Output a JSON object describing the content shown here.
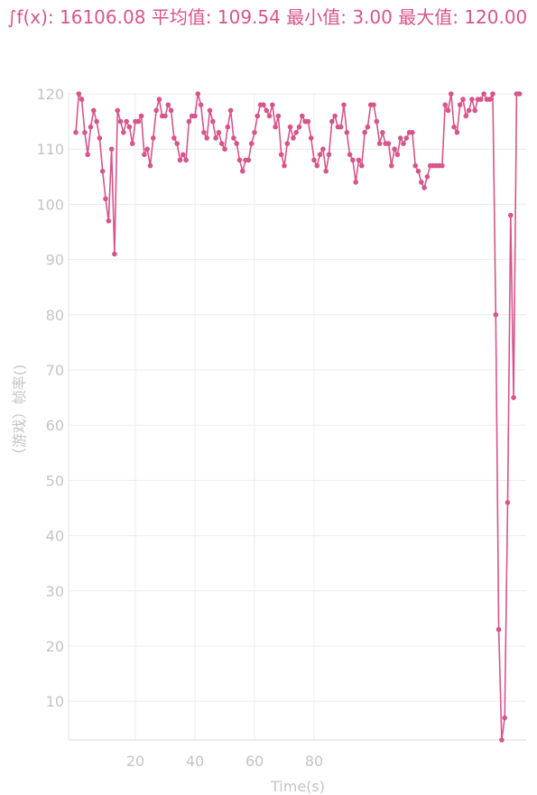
{
  "summary": {
    "text": "∫f(x): 16106.08 平均值: 109.54 最小值: 3.00 最大值: 120.00"
  },
  "colors": {
    "series": "#d6558b",
    "grid": "#ececec",
    "tick_text": "#c4c4c4"
  },
  "chart_data": {
    "type": "line",
    "title": "",
    "xlabel": "Time(s)",
    "ylabel": "（游戏）帧率()",
    "ylim": [
      3,
      120
    ],
    "xlim": [
      0,
      149
    ],
    "y_ticks": [
      10,
      20,
      30,
      40,
      50,
      60,
      70,
      80,
      90,
      100,
      110,
      120
    ],
    "x_ticks": [
      20,
      40,
      60,
      80
    ],
    "grid": true,
    "series": [
      {
        "values": [
          113,
          120,
          119,
          113,
          109,
          114,
          117,
          115,
          112,
          106,
          101,
          97,
          110,
          91,
          117,
          115,
          113,
          115,
          114,
          111,
          115,
          115,
          116,
          109,
          110,
          107,
          112,
          117,
          119,
          116,
          116,
          118,
          117,
          112,
          111,
          108,
          109,
          108,
          115,
          116,
          116,
          120,
          118,
          113,
          112,
          117,
          115,
          112,
          113,
          111,
          110,
          114,
          117,
          112,
          111,
          108,
          106,
          108,
          108,
          111,
          113,
          116,
          118,
          118,
          117,
          116,
          118,
          114,
          116,
          109,
          107,
          111,
          114,
          112,
          113,
          114,
          116,
          115,
          115,
          112,
          108,
          107,
          109,
          110,
          106,
          109,
          115,
          116,
          114,
          114,
          118,
          113,
          109,
          108,
          104,
          108,
          107,
          113,
          114,
          118,
          118,
          115,
          111,
          113,
          111,
          111,
          107,
          110,
          109,
          112,
          111,
          112,
          113,
          113,
          107,
          106,
          104,
          103,
          105,
          107,
          107,
          107,
          107,
          107,
          118,
          117,
          120,
          114,
          113,
          118,
          119,
          116,
          117,
          119,
          117,
          119,
          119,
          120,
          119,
          119,
          120,
          80,
          23,
          3,
          7,
          46,
          98,
          65,
          120,
          120
        ]
      }
    ]
  }
}
